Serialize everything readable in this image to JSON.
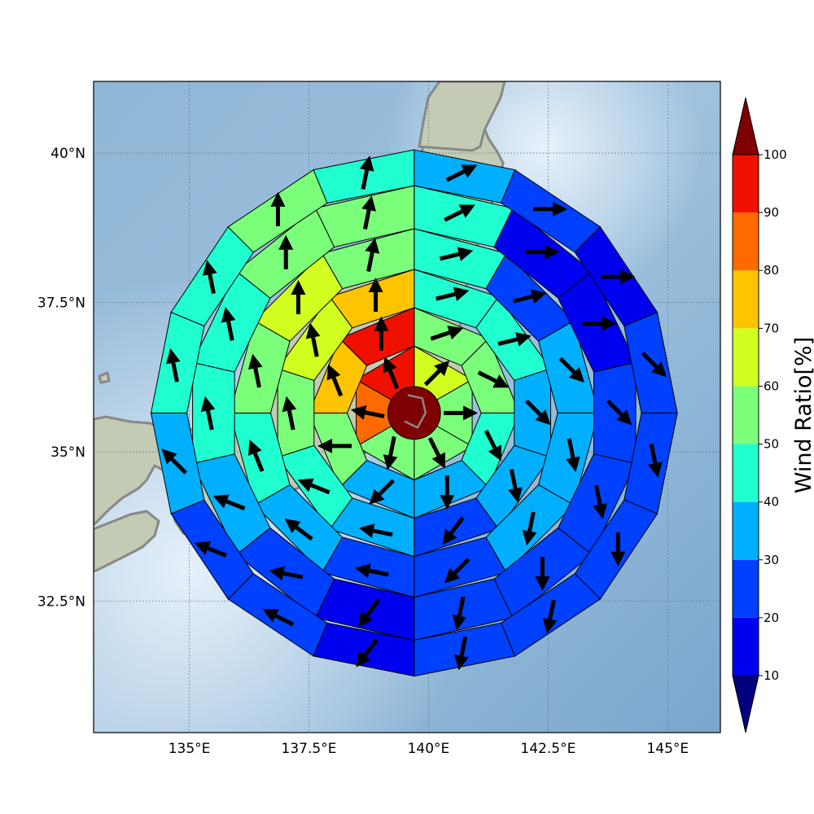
{
  "map": {
    "lon_range": [
      133.0,
      146.1
    ],
    "lat_range": [
      30.3,
      41.2
    ],
    "gridlines": true,
    "x_ticks": [
      {
        "value": 135,
        "label": "135°E"
      },
      {
        "value": 137.5,
        "label": "137.5°E"
      },
      {
        "value": 140,
        "label": "140°E"
      },
      {
        "value": 142.5,
        "label": "142.5°E"
      },
      {
        "value": 145,
        "label": "145°E"
      }
    ],
    "y_ticks": [
      {
        "value": 40,
        "label": "40°N"
      },
      {
        "value": 37.5,
        "label": "37.5°N"
      },
      {
        "value": 35,
        "label": "35°N"
      },
      {
        "value": 32.5,
        "label": "32.5°N"
      }
    ]
  },
  "colorbar": {
    "title": "Wind Ratio[%]",
    "bounds": [
      10,
      20,
      30,
      40,
      50,
      60,
      70,
      80,
      90,
      100
    ],
    "tick_labels": [
      "10",
      "20",
      "30",
      "40",
      "50",
      "60",
      "70",
      "80",
      "90",
      "100"
    ],
    "colors": [
      "#0000f0",
      "#0040ff",
      "#00b0ff",
      "#20ffd0",
      "#7bff7b",
      "#d0ff20",
      "#ffc400",
      "#ff6a00",
      "#f01000"
    ],
    "under_color": "#00007f",
    "over_color": "#7f0000",
    "extend": "both"
  },
  "center_cell": {
    "lon": 139.7,
    "lat": 35.65,
    "value": 105,
    "color": "#7f0000"
  },
  "rings": [
    {
      "name": "ring-1",
      "r_deg": [
        0.55,
        1.4
      ],
      "sectors": 6,
      "start_azimuth": 0,
      "values": [
        65,
        55,
        55,
        55,
        85,
        95
      ],
      "arrows": [
        [
          2,
          2
        ],
        [
          5,
          0
        ],
        [
          2,
          -4
        ],
        [
          -1,
          -5
        ],
        [
          -5,
          1
        ],
        [
          -2,
          5
        ]
      ]
    },
    {
      "name": "ring-2",
      "r_deg": [
        1.4,
        2.2
      ],
      "sectors": 8,
      "start_azimuth": 0,
      "values": [
        55,
        55,
        45,
        35,
        35,
        55,
        75,
        95
      ],
      "arrows": [
        [
          3,
          1
        ],
        [
          4,
          -2
        ],
        [
          2,
          -4
        ],
        [
          0,
          -5
        ],
        [
          -3,
          -3
        ],
        [
          -5,
          0
        ],
        [
          -2,
          5
        ],
        [
          0,
          5
        ]
      ]
    },
    {
      "name": "ring-3",
      "r_deg": [
        2.2,
        3.0
      ],
      "sectors": 10,
      "start_azimuth": 0,
      "values": [
        45,
        45,
        35,
        35,
        25,
        35,
        45,
        55,
        65,
        75
      ],
      "arrows": [
        [
          4,
          1
        ],
        [
          4,
          1
        ],
        [
          3,
          -3
        ],
        [
          1,
          -5
        ],
        [
          -3,
          -4
        ],
        [
          -5,
          1
        ],
        [
          -5,
          2
        ],
        [
          -1,
          5
        ],
        [
          -1,
          5
        ],
        [
          0,
          5
        ]
      ]
    },
    {
      "name": "ring-4",
      "r_deg": [
        3.0,
        3.85
      ],
      "sectors": 12,
      "start_azimuth": 0,
      "values": [
        45,
        25,
        35,
        35,
        35,
        25,
        25,
        35,
        45,
        55,
        65,
        55
      ],
      "arrows": [
        [
          4,
          1
        ],
        [
          4,
          1
        ],
        [
          3,
          -3
        ],
        [
          1,
          -5
        ],
        [
          -1,
          -5
        ],
        [
          -3,
          -3
        ],
        [
          -5,
          1
        ],
        [
          -4,
          3
        ],
        [
          -2,
          5
        ],
        [
          -1,
          5
        ],
        [
          0,
          5
        ],
        [
          1,
          5
        ]
      ]
    },
    {
      "name": "ring-5",
      "r_deg": [
        3.85,
        4.75
      ],
      "sectors": 14,
      "start_azimuth": 0,
      "values": [
        45,
        15,
        15,
        25,
        25,
        25,
        25,
        15,
        25,
        35,
        45,
        45,
        55,
        55
      ],
      "arrows": [
        [
          4,
          2
        ],
        [
          5,
          0
        ],
        [
          5,
          0
        ],
        [
          3,
          -3
        ],
        [
          1,
          -5
        ],
        [
          0,
          -5
        ],
        [
          -1,
          -5
        ],
        [
          -3,
          -4
        ],
        [
          -5,
          1
        ],
        [
          -5,
          2
        ],
        [
          -1,
          5
        ],
        [
          -1,
          5
        ],
        [
          0,
          5
        ],
        [
          1,
          5
        ]
      ]
    },
    {
      "name": "ring-6",
      "r_deg": [
        4.75,
        5.5
      ],
      "sectors": 16,
      "start_azimuth": 0,
      "values": [
        35,
        25,
        15,
        25,
        25,
        25,
        25,
        25,
        15,
        25,
        25,
        35,
        45,
        45,
        55,
        45
      ],
      "arrows": [
        [
          4,
          2
        ],
        [
          5,
          0
        ],
        [
          5,
          0
        ],
        [
          3,
          -3
        ],
        [
          1,
          -5
        ],
        [
          0,
          -5
        ],
        [
          -1,
          -5
        ],
        [
          -1,
          -5
        ],
        [
          -3,
          -4
        ],
        [
          -4,
          2
        ],
        [
          -5,
          2
        ],
        [
          -4,
          4
        ],
        [
          -1,
          5
        ],
        [
          -1,
          5
        ],
        [
          0,
          5
        ],
        [
          1,
          5
        ]
      ]
    }
  ]
}
